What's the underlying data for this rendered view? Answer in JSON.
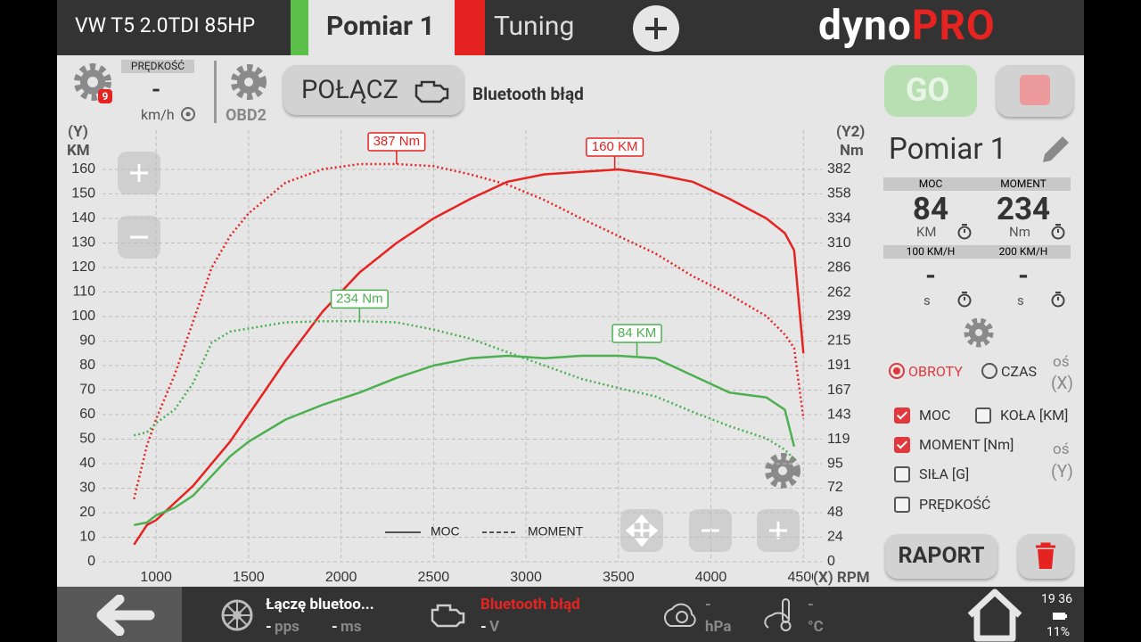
{
  "header": {
    "vehicle": "VW T5 2.0TDI 85HP",
    "tabs": [
      "Pomiar 1",
      "Tuning"
    ],
    "logo_left": "dyno",
    "logo_right": "PRO"
  },
  "toolbar": {
    "badge": "9",
    "speed_label": "PRĘDKOŚĆ",
    "speed_value": "-",
    "speed_unit": "km/h",
    "obd": "OBD2",
    "connect": "POŁĄCZ",
    "status": "Bluetooth błąd"
  },
  "chart_data": {
    "type": "line",
    "y_label_top": "(Y)",
    "y_label": "KM",
    "y2_label_top": "(Y2)",
    "y2_label": "Nm",
    "x_label": "(X) RPM",
    "x": [
      880,
      950,
      1000,
      1100,
      1200,
      1300,
      1400,
      1500,
      1700,
      1900,
      2100,
      2300,
      2500,
      2700,
      2900,
      3100,
      3300,
      3500,
      3700,
      3900,
      4100,
      4300,
      4400,
      4450,
      4500
    ],
    "series": [
      {
        "color": "#e52421",
        "style": "solid",
        "values": [
          7,
          15,
          17,
          24,
          31,
          40,
          49,
          60,
          82,
          102,
          118,
          130,
          140,
          148,
          155,
          158,
          159,
          160,
          158,
          155,
          148,
          140,
          134,
          127,
          85
        ]
      },
      {
        "color": "#e52421",
        "style": "dotted",
        "axis": "y2",
        "values": [
          61,
          113,
          139,
          182,
          234,
          286,
          317,
          339,
          369,
          382,
          387,
          387,
          385,
          377,
          367,
          352,
          334,
          317,
          300,
          278,
          260,
          239,
          221,
          208,
          139
        ]
      },
      {
        "color": "#4cb050",
        "style": "solid",
        "values": [
          15,
          16,
          19,
          22,
          27,
          35,
          43,
          49,
          58,
          64,
          69,
          75,
          80,
          83,
          84,
          83,
          84,
          84,
          83,
          76,
          69,
          67,
          62,
          47,
          null
        ]
      },
      {
        "color": "#4cb050",
        "style": "dotted",
        "axis": "y2",
        "values": [
          123,
          126,
          135,
          148,
          174,
          213,
          224,
          227,
          233,
          234,
          234,
          233,
          226,
          217,
          204,
          191,
          178,
          169,
          161,
          146,
          132,
          120,
          109,
          100,
          null
        ]
      }
    ],
    "legend": [
      {
        "label": "MOC",
        "style": "solid"
      },
      {
        "label": "MOMENT",
        "style": "dashed"
      }
    ],
    "annotations": [
      {
        "text": "387 Nm",
        "x": 2300,
        "y": 387,
        "axis": "y2",
        "color": "#e52421"
      },
      {
        "text": "160 KM",
        "x": 3480,
        "y": 160,
        "axis": "y",
        "color": "#e52421"
      },
      {
        "text": "234 Nm",
        "x": 2100,
        "y": 234,
        "axis": "y2",
        "color": "#4cb050"
      },
      {
        "text": "84 KM",
        "x": 3600,
        "y": 84,
        "axis": "y",
        "color": "#4cb050"
      }
    ],
    "xlim": [
      710,
      4600
    ],
    "xticks": [
      1000,
      1500,
      2000,
      2500,
      3000,
      3500,
      4000,
      4500
    ],
    "ylim": [
      0,
      176
    ],
    "yticks": [
      0,
      10,
      20,
      30,
      40,
      50,
      60,
      70,
      80,
      90,
      100,
      110,
      120,
      130,
      140,
      150,
      160
    ],
    "y2lim": [
      0,
      420
    ],
    "y2ticks": [
      0,
      24,
      48,
      72,
      95,
      119,
      143,
      167,
      191,
      215,
      239,
      262,
      286,
      310,
      334,
      358,
      382
    ],
    "grid": true
  },
  "panel": {
    "go": "GO",
    "title": "Pomiar 1",
    "stats": [
      {
        "label": "MOC",
        "value": 84,
        "unit": "KM"
      },
      {
        "label": "MOMENT",
        "value": 234,
        "unit": "Nm"
      },
      {
        "label": "100 KM/H",
        "value": "-",
        "unit": "s"
      },
      {
        "label": "200 KM/H",
        "value": "-",
        "unit": "s"
      }
    ],
    "x_options": [
      {
        "label": "OBROTY",
        "selected": true
      },
      {
        "label": "CZAS",
        "selected": false
      }
    ],
    "x_axis": [
      "oś",
      "(X)"
    ],
    "y_options": [
      {
        "label": "MOC",
        "checked": true
      },
      {
        "label": "KOŁA [KM]",
        "checked": false
      },
      {
        "label": "MOMENT [Nm]",
        "checked": true
      },
      {
        "label": "SIŁA [G]",
        "checked": false
      },
      {
        "label": "PRĘDKOŚĆ",
        "checked": false
      }
    ],
    "y_axis": [
      "oś",
      "(Y)"
    ],
    "report": "RAPORT"
  },
  "footer": {
    "connection": "Łączę bluetoo...",
    "pps": "-",
    "pps_unit": "pps",
    "ms": "-",
    "ms_unit": "ms",
    "engine_status": "Bluetooth błąd",
    "volt": "-",
    "volt_unit": "V",
    "pressure": "-",
    "pressure_unit": "hPa",
    "temp": "-",
    "temp_unit": "°C",
    "time": "19 36",
    "battery": "11%"
  }
}
